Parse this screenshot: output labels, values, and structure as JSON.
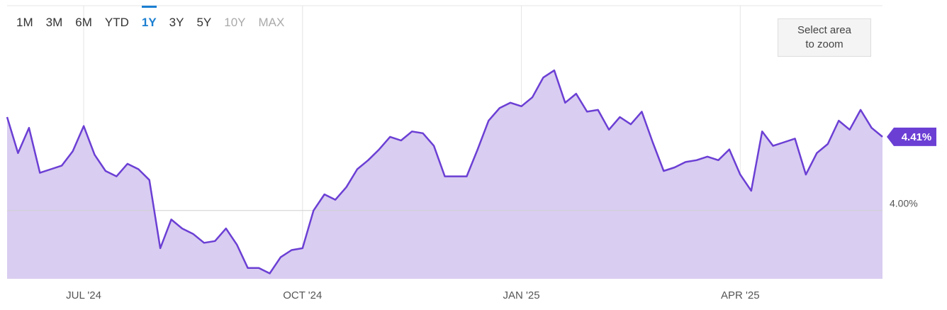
{
  "chart_data": {
    "type": "area",
    "range_buttons": [
      {
        "label": "1M",
        "active": false,
        "disabled": false
      },
      {
        "label": "3M",
        "active": false,
        "disabled": false
      },
      {
        "label": "6M",
        "active": false,
        "disabled": false
      },
      {
        "label": "YTD",
        "active": false,
        "disabled": false
      },
      {
        "label": "1Y",
        "active": true,
        "disabled": false
      },
      {
        "label": "3Y",
        "active": false,
        "disabled": false
      },
      {
        "label": "5Y",
        "active": false,
        "disabled": false
      },
      {
        "label": "10Y",
        "active": false,
        "disabled": true
      },
      {
        "label": "MAX",
        "active": false,
        "disabled": true
      }
    ],
    "zoom_hint": [
      "Select area",
      "to zoom"
    ],
    "categories": [
      null,
      null,
      null,
      null,
      null,
      null,
      null,
      "JUL '24",
      null,
      null,
      null,
      null,
      null,
      null,
      null,
      null,
      null,
      null,
      null,
      null,
      null,
      null,
      null,
      null,
      null,
      null,
      null,
      "OCT '24",
      null,
      null,
      null,
      null,
      null,
      null,
      null,
      null,
      null,
      null,
      null,
      null,
      null,
      null,
      null,
      null,
      null,
      null,
      null,
      "JAN '25",
      null,
      null,
      null,
      null,
      null,
      null,
      null,
      null,
      null,
      null,
      null,
      null,
      null,
      null,
      null,
      null,
      null,
      null,
      null,
      "APR '25",
      null,
      null,
      null,
      null,
      null,
      null,
      null,
      null,
      null,
      null,
      null,
      null,
      null
    ],
    "series": [
      {
        "color": "#6b3fd4",
        "fill": "#d9cdf1",
        "values": [
          4.52,
          4.32,
          4.46,
          4.21,
          4.23,
          4.25,
          4.33,
          4.47,
          4.31,
          4.22,
          4.19,
          4.26,
          4.23,
          4.17,
          3.79,
          3.95,
          3.9,
          3.87,
          3.82,
          3.83,
          3.9,
          3.81,
          3.68,
          3.68,
          3.65,
          3.74,
          3.78,
          3.79,
          4.0,
          4.09,
          4.06,
          4.13,
          4.23,
          4.28,
          4.34,
          4.41,
          4.39,
          4.44,
          4.43,
          4.36,
          4.19,
          4.19,
          4.19,
          4.34,
          4.5,
          4.57,
          4.6,
          4.58,
          4.63,
          4.74,
          4.78,
          4.6,
          4.65,
          4.55,
          4.56,
          4.45,
          4.52,
          4.48,
          4.55,
          4.38,
          4.22,
          4.24,
          4.27,
          4.28,
          4.3,
          4.28,
          4.34,
          4.2,
          4.11,
          4.44,
          4.36,
          4.38,
          4.4,
          4.2,
          4.32,
          4.37,
          4.5,
          4.45,
          4.56,
          4.46,
          4.41
        ],
        "value_labels": [
          null,
          null,
          null,
          null,
          null,
          null,
          null,
          null,
          null,
          null,
          null,
          null,
          null,
          null,
          null,
          null,
          null,
          null,
          null,
          null,
          null,
          null,
          null,
          null,
          null,
          null,
          null,
          null,
          null,
          null,
          null,
          null,
          null,
          null,
          null,
          null,
          null,
          null,
          null,
          null,
          null,
          null,
          null,
          null,
          null,
          null,
          null,
          null,
          null,
          null,
          null,
          null,
          null,
          null,
          null,
          null,
          null,
          null,
          null,
          null,
          null,
          null,
          null,
          null,
          null,
          null,
          null,
          null,
          null,
          null,
          null,
          null,
          null,
          null,
          null,
          null,
          null,
          null,
          null,
          null,
          "4.41%"
        ]
      }
    ],
    "ylim": [
      3.62,
      5.14
    ],
    "yticks": [
      {
        "value": 4,
        "label": "4.00%"
      }
    ],
    "grid": true
  }
}
